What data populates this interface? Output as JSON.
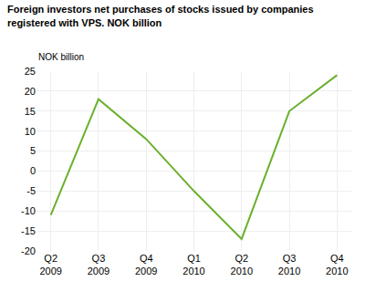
{
  "chart_data": {
    "type": "line",
    "title": "Foreign investors net purchases of stocks issued by companies\nregistered with VPS. NOK billion",
    "ylabel": "NOK billion",
    "categories": [
      "Q2\n2009",
      "Q3\n2009",
      "Q4\n2009",
      "Q1\n2010",
      "Q2\n2010",
      "Q3\n2010",
      "Q4\n2010"
    ],
    "values": [
      -11,
      18,
      8,
      -5,
      -17,
      15,
      24
    ],
    "color": "#6ab02c",
    "ylim": [
      -20,
      25
    ],
    "yticks": [
      -20,
      -15,
      -10,
      -5,
      0,
      5,
      10,
      15,
      20,
      25
    ],
    "grid": true
  }
}
